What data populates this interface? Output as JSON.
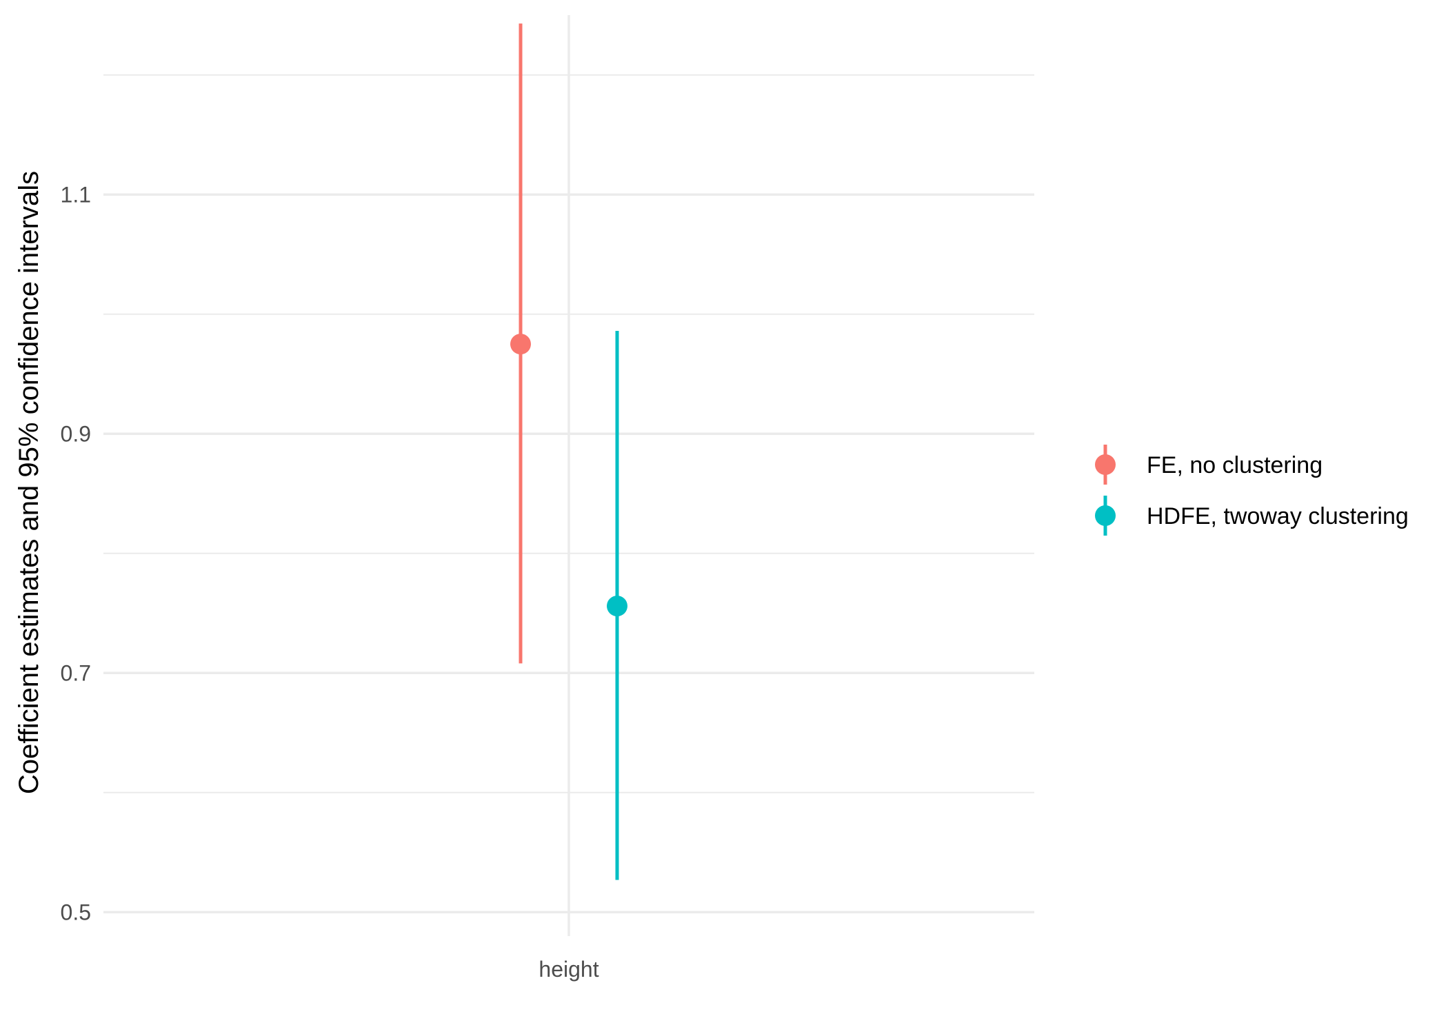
{
  "chart_data": {
    "type": "scatter",
    "subtype": "pointrange",
    "title": "",
    "xlabel": "",
    "ylabel": "Coefficient estimates and 95% confidence intervals",
    "categories": [
      "height"
    ],
    "ylim": [
      0.48,
      1.25
    ],
    "yticks": [
      0.5,
      0.7,
      0.9,
      1.1
    ],
    "ytick_labels": [
      "0.5",
      "0.7",
      "0.9",
      "1.1"
    ],
    "grid": true,
    "legend_position": "right",
    "series": [
      {
        "name": "FE, no clustering",
        "color": "#F8766D",
        "category": "height",
        "estimate": 0.975,
        "ci_low": 0.708,
        "ci_high": 1.243
      },
      {
        "name": "HDFE, twoway clustering",
        "color": "#00BFC4",
        "category": "height",
        "estimate": 0.756,
        "ci_low": 0.527,
        "ci_high": 0.986
      }
    ]
  }
}
